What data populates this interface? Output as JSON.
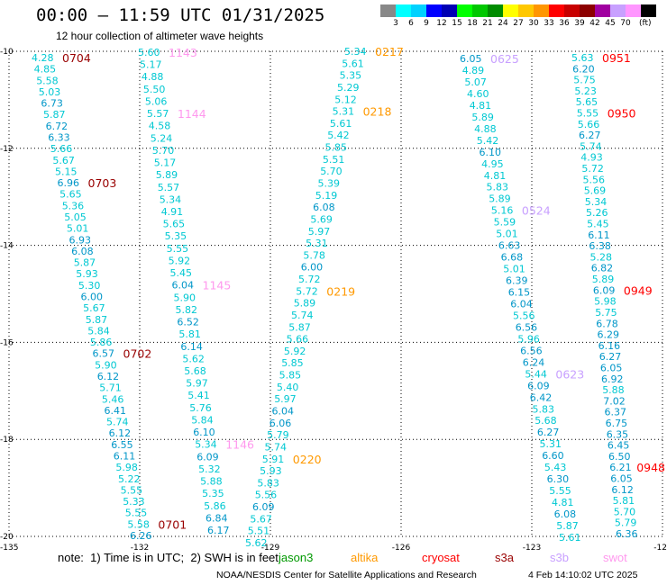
{
  "title": "00:00 — 11:59 UTC 01/31/2025",
  "subtitle": "12 hour collection of altimeter wave heights",
  "legend": {
    "labels": [
      "3",
      "6",
      "9",
      "12",
      "15",
      "18",
      "21",
      "24",
      "27",
      "30",
      "33",
      "36",
      "39",
      "42",
      "45",
      "70"
    ],
    "unit": "(ft)",
    "colors": [
      "#888888",
      "#00ffff",
      "#00d2ff",
      "#0000ff",
      "#0000b4",
      "#00ff00",
      "#00c800",
      "#008c00",
      "#ffff00",
      "#ffc800",
      "#ff9600",
      "#ff0000",
      "#c80000",
      "#8c0000",
      "#a000a0",
      "#c8a0ff",
      "#ff96ff",
      "#000000"
    ]
  },
  "note": "note:  1) Time is in UTC;  2) SWH is in feet",
  "satellites": [
    {
      "name": "jason3",
      "color": "#009900"
    },
    {
      "name": "altika",
      "color": "#ff9900"
    },
    {
      "name": "cryosat",
      "color": "#ff0000"
    },
    {
      "name": "s3a",
      "color": "#990000"
    },
    {
      "name": "s3b",
      "color": "#c8a0ff"
    },
    {
      "name": "swot",
      "color": "#ff99ee"
    }
  ],
  "footer": {
    "credit": "NOAA/NESDIS Center for Satellite Applications and Research",
    "generated": "4 Feb 14:10:02 UTC 2025"
  },
  "chart_data": {
    "type": "scatter",
    "x_ticks": [
      "-135",
      "-132",
      "-129",
      "-126",
      "-123",
      "-12"
    ],
    "y_ticks": [
      "-10",
      "-12",
      "-14",
      "-16",
      "-18",
      "-20"
    ],
    "xlim": [
      -135,
      -120
    ],
    "ylim": [
      -20,
      -10
    ],
    "grid": true,
    "value_colors": {
      "from_3_to_6_ft": "#00c8d2",
      "from_6_to_9_ft": "#0096c8"
    },
    "tracks": [
      {
        "satellite_index": 3,
        "passes": [
          {
            "time": "0704",
            "swh": [
              4.28,
              4.85,
              5.58,
              5.03,
              6.73,
              5.87,
              6.72,
              6.33,
              5.66,
              5.67,
              5.15
            ]
          },
          {
            "time": "0703",
            "swh": [
              6.96,
              5.65,
              5.36,
              5.05,
              5.01,
              6.93,
              6.08,
              5.87,
              5.93,
              5.3,
              6.0,
              5.67,
              5.87,
              5.84,
              5.86
            ]
          },
          {
            "time": "0702",
            "swh": [
              6.57,
              5.9,
              6.12,
              5.71,
              5.46,
              6.41,
              5.74,
              6.12,
              6.55,
              6.11,
              5.98,
              5.22,
              5.55,
              5.33,
              5.55
            ]
          },
          {
            "time": "0701",
            "swh": [
              5.58,
              6.26
            ]
          }
        ]
      },
      {
        "satellite_index": 5,
        "passes": [
          {
            "time": "1143",
            "swh": [
              5.6,
              5.17,
              4.88,
              5.5,
              5.06
            ]
          },
          {
            "time": "1144",
            "swh": [
              5.57,
              4.58,
              5.24,
              5.7,
              5.17,
              5.89,
              5.57,
              5.34,
              4.91,
              5.65,
              5.35,
              5.55,
              5.92,
              5.45
            ]
          },
          {
            "time": "1145",
            "swh": [
              6.04,
              5.9,
              5.82,
              6.52,
              5.81,
              6.14,
              5.62,
              5.68,
              5.97,
              5.41,
              5.76,
              5.84,
              6.1
            ]
          },
          {
            "time": "1146",
            "swh": [
              5.34,
              6.09,
              5.32,
              5.88,
              5.35,
              5.86,
              6.84,
              6.17
            ]
          }
        ]
      },
      {
        "satellite_index": 1,
        "passes": [
          {
            "time": "0217",
            "swh": [
              5.34,
              5.61,
              5.35,
              5.29,
              5.12
            ]
          },
          {
            "time": "0218",
            "swh": [
              5.31,
              5.61,
              5.42,
              5.85,
              5.51,
              5.7,
              5.39,
              5.19,
              6.08,
              5.69,
              5.97,
              5.31,
              5.78,
              6.0,
              5.72
            ]
          },
          {
            "time": "0219",
            "swh": [
              5.72,
              5.89,
              5.74,
              5.87,
              5.66,
              5.92,
              5.85,
              5.85,
              5.4,
              5.97,
              6.04,
              6.06,
              5.79,
              5.74
            ]
          },
          {
            "time": "0220",
            "swh": [
              5.91,
              5.93,
              5.83,
              5.56,
              6.09,
              5.67,
              5.51,
              5.62
            ]
          }
        ]
      },
      {
        "satellite_index": 4,
        "passes": [
          {
            "time": "0625",
            "swh": [
              6.05,
              4.89,
              5.07,
              4.6,
              4.81,
              5.89,
              4.88,
              5.42,
              6.1,
              4.95,
              4.81,
              5.83,
              5.89
            ]
          },
          {
            "time": "0524",
            "swh": [
              5.16,
              5.59,
              5.01,
              6.63,
              6.68,
              5.01,
              6.39,
              6.15,
              6.04,
              5.56,
              6.56,
              5.96,
              6.56,
              6.24
            ]
          },
          {
            "time": "0623",
            "swh": [
              5.44,
              6.09,
              6.42,
              5.83,
              5.68,
              6.27,
              5.31,
              6.6,
              5.43,
              6.3,
              5.55,
              4.81,
              6.08,
              5.87,
              5.61
            ]
          }
        ]
      },
      {
        "satellite_index": 2,
        "passes": [
          {
            "time": "0951",
            "swh": [
              5.63,
              6.2,
              5.75,
              5.23,
              5.65
            ]
          },
          {
            "time": "0950",
            "swh": [
              5.55,
              5.66,
              6.27,
              5.74,
              4.93,
              5.72,
              5.56,
              5.69,
              5.34,
              5.26,
              5.45,
              6.11,
              6.38,
              5.28,
              6.82,
              5.89
            ]
          },
          {
            "time": "0949",
            "swh": [
              6.09,
              5.98,
              5.75,
              6.78,
              6.29,
              6.16,
              6.27,
              6.05,
              6.92,
              5.88,
              7.02,
              6.37,
              6.75,
              6.35,
              6.45,
              6.5
            ]
          },
          {
            "time": "0948",
            "swh": [
              6.21,
              6.05,
              6.12,
              5.81,
              5.7,
              5.79,
              6.36
            ]
          }
        ]
      }
    ]
  }
}
